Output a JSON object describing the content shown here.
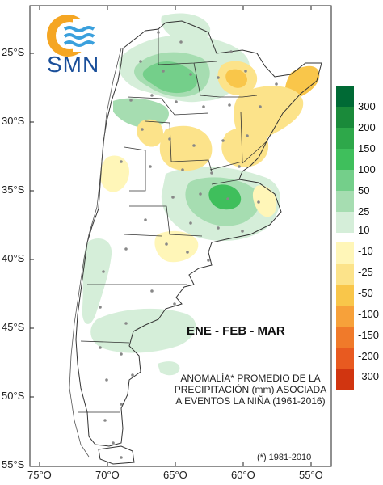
{
  "logo": {
    "text": "SMN",
    "accent": "#f5a623",
    "waves": "#3aa0dd"
  },
  "latitude_labels": [
    "25°S",
    "30°S",
    "35°S",
    "40°S",
    "45°S",
    "50°S",
    "55°S"
  ],
  "longitude_labels": [
    "75°O",
    "70°O",
    "65°O",
    "60°O",
    "55°O"
  ],
  "season": "ENE - FEB - MAR",
  "caption": [
    "ANOMALÍA* PROMEDIO DE LA",
    "PRECIPITACIÓN (mm) ASOCIADA",
    "A EVENTOS LA NIÑA (1961-2016)"
  ],
  "footnote": "(*) 1981-2010",
  "legend": {
    "positive": [
      {
        "label": "300",
        "color": "#006a35"
      },
      {
        "label": "200",
        "color": "#1a8a3a"
      },
      {
        "label": "150",
        "color": "#2ea84a"
      },
      {
        "label": "100",
        "color": "#3fbf5c"
      },
      {
        "label": "50",
        "color": "#74cf8a"
      },
      {
        "label": "25",
        "color": "#a6ddb1"
      },
      {
        "label": "10",
        "color": "#d5eed9"
      }
    ],
    "negative": [
      {
        "label": "-10",
        "color": "#fff6b8"
      },
      {
        "label": "-25",
        "color": "#fce38a"
      },
      {
        "label": "-50",
        "color": "#f9c64a"
      },
      {
        "label": "-100",
        "color": "#f7a13a"
      },
      {
        "label": "-150",
        "color": "#f07a2a"
      },
      {
        "label": "-200",
        "color": "#e85a20"
      },
      {
        "label": "-300",
        "color": "#d13510"
      }
    ]
  }
}
